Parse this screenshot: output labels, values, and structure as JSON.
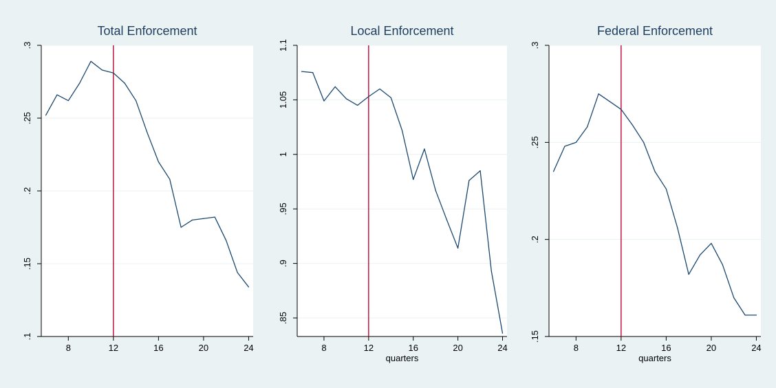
{
  "figure": {
    "background_color": "#eaf2f3",
    "plot_background_color": "#ffffff",
    "line_color": "#1a476f",
    "vline_color": "#c10534",
    "grid_color": "#eaf2f3"
  },
  "chart_data": [
    {
      "type": "line",
      "title": "Total Enforcement",
      "xlabel": "",
      "ylabel": "",
      "xlim": [
        5.6,
        24.4
      ],
      "ylim": [
        0.1,
        0.3
      ],
      "xticks": [
        8,
        12,
        16,
        20,
        24
      ],
      "xtick_labels": [
        "8",
        "12",
        "16",
        "20",
        "24"
      ],
      "yticks": [
        0.1,
        0.15,
        0.2,
        0.25,
        0.3
      ],
      "ytick_labels": [
        ".1",
        ".15",
        ".2",
        ".25",
        ".3"
      ],
      "grid": true,
      "vline_x": 12,
      "x": [
        6,
        7,
        8,
        9,
        10,
        11,
        12,
        13,
        14,
        15,
        16,
        17,
        18,
        19,
        20,
        21,
        22,
        23,
        24
      ],
      "series": [
        {
          "values": [
            0.252,
            0.266,
            0.262,
            0.274,
            0.289,
            0.283,
            0.281,
            0.274,
            0.262,
            0.24,
            0.22,
            0.208,
            0.175,
            0.18,
            0.181,
            0.182,
            0.166,
            0.144,
            0.134
          ]
        }
      ]
    },
    {
      "type": "line",
      "title": "Local Enforcement",
      "xlabel": "quarters",
      "ylabel": "",
      "xlim": [
        5.6,
        24.4
      ],
      "ylim": [
        0.833,
        1.1
      ],
      "xticks": [
        8,
        12,
        16,
        20,
        24
      ],
      "xtick_labels": [
        "8",
        "12",
        "16",
        "20",
        "24"
      ],
      "yticks": [
        0.85,
        0.9,
        0.95,
        1.0,
        1.05,
        1.1
      ],
      "ytick_labels": [
        ".85",
        ".9",
        ".95",
        "1",
        "1.05",
        "1.1"
      ],
      "grid": true,
      "vline_x": 12,
      "x": [
        6,
        7,
        8,
        9,
        10,
        11,
        12,
        13,
        14,
        15,
        16,
        17,
        18,
        19,
        20,
        21,
        22,
        23,
        24
      ],
      "series": [
        {
          "values": [
            1.076,
            1.075,
            1.049,
            1.062,
            1.051,
            1.045,
            1.053,
            1.06,
            1.052,
            1.022,
            0.977,
            1.005,
            0.967,
            0.94,
            0.914,
            0.976,
            0.985,
            0.893,
            0.836
          ]
        }
      ]
    },
    {
      "type": "line",
      "title": "Federal Enforcement",
      "xlabel": "quarters",
      "ylabel": "",
      "xlim": [
        5.6,
        24.4
      ],
      "ylim": [
        0.15,
        0.3
      ],
      "xticks": [
        8,
        12,
        16,
        20,
        24
      ],
      "xtick_labels": [
        "8",
        "12",
        "16",
        "20",
        "24"
      ],
      "yticks": [
        0.15,
        0.2,
        0.25,
        0.3
      ],
      "ytick_labels": [
        ".15",
        ".2",
        ".25",
        ".3"
      ],
      "grid": true,
      "vline_x": 12,
      "x": [
        6,
        7,
        8,
        9,
        10,
        11,
        12,
        13,
        14,
        15,
        16,
        17,
        18,
        19,
        20,
        21,
        22,
        23,
        24
      ],
      "series": [
        {
          "values": [
            0.235,
            0.248,
            0.25,
            0.258,
            0.275,
            0.271,
            0.267,
            0.259,
            0.25,
            0.235,
            0.226,
            0.206,
            0.182,
            0.192,
            0.198,
            0.187,
            0.17,
            0.161,
            0.161
          ]
        }
      ]
    }
  ]
}
